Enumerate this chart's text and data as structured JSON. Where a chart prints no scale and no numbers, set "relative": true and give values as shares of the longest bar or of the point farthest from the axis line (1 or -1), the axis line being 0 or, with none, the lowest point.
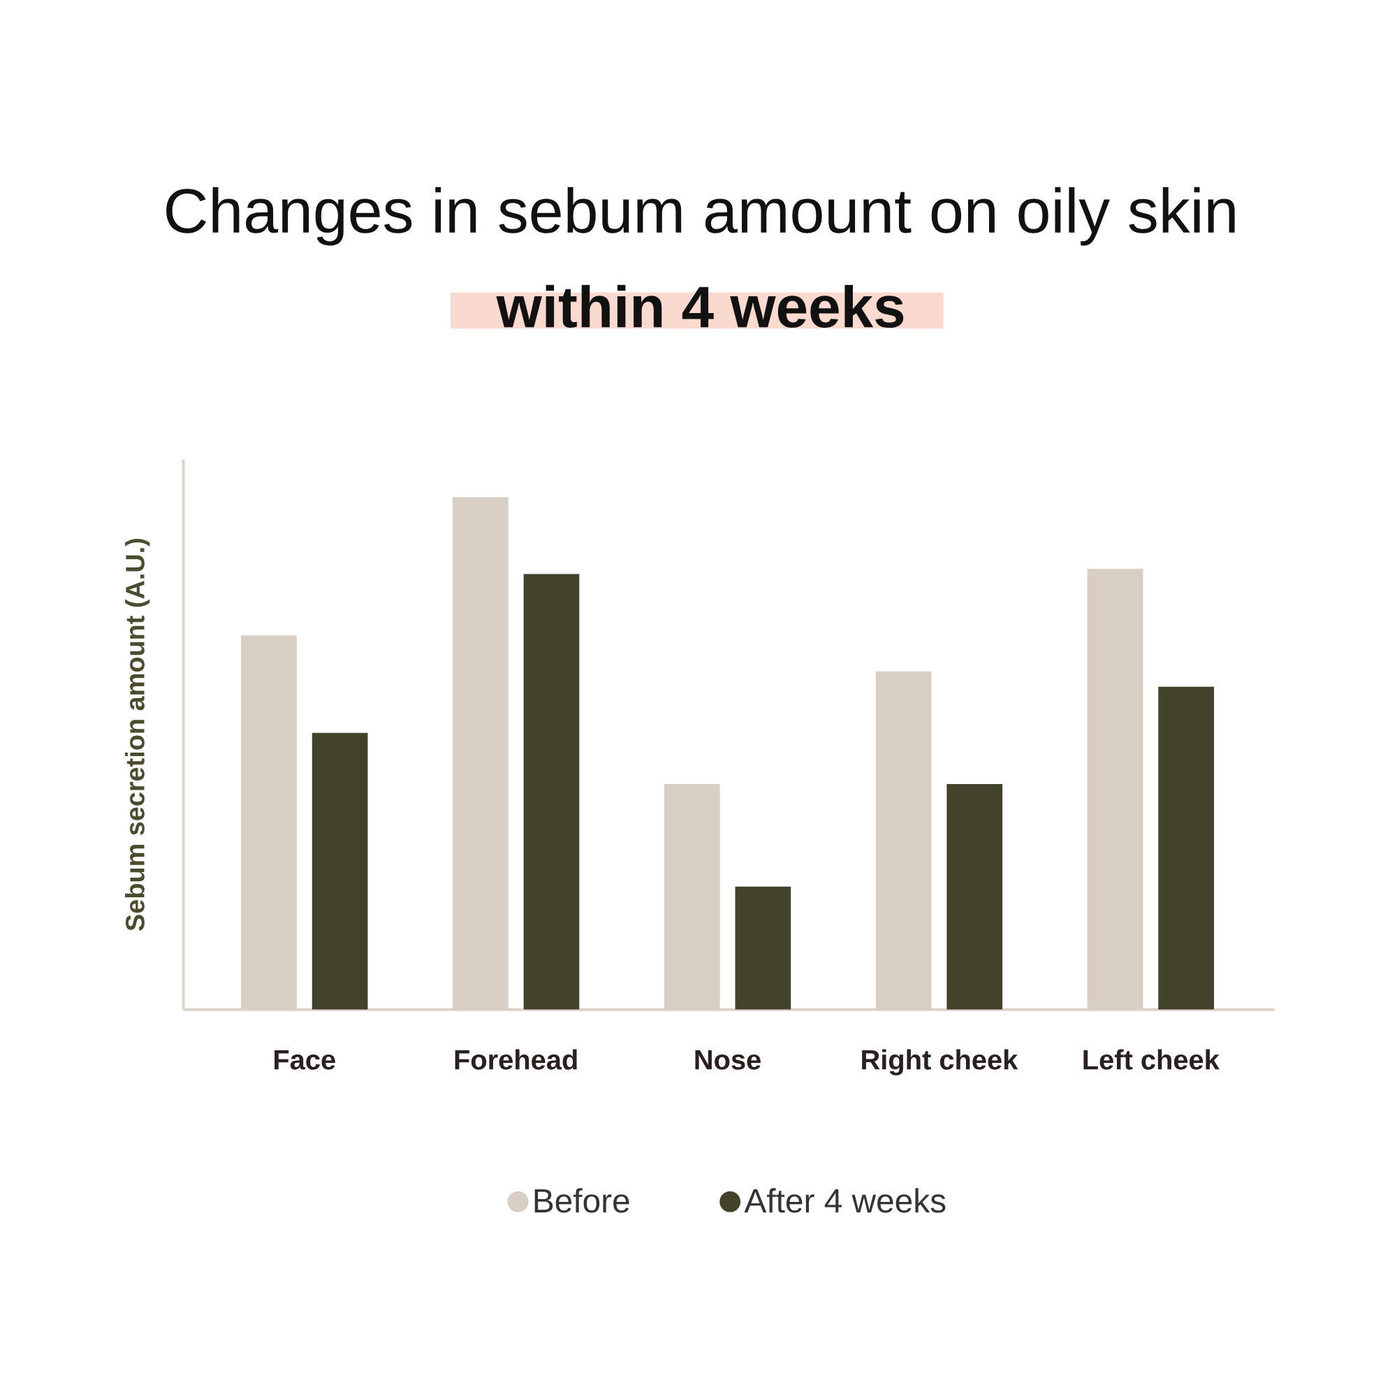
{
  "chart_data": {
    "type": "bar",
    "title": "Changes in sebum amount on oily skin",
    "subtitle": "within 4 weeks",
    "ylabel": "Sebum secretion amount (A.U.)",
    "categories": [
      "Face",
      "Forehead",
      "Nose",
      "Right cheek",
      "Left cheek"
    ],
    "relative": true,
    "series": [
      {
        "name": "Before",
        "color": "#d8cec3",
        "values": [
          0.73,
          1,
          0.44,
          0.66,
          0.86
        ]
      },
      {
        "name": "After 4 weeks",
        "color": "#42432a",
        "values": [
          0.54,
          0.85,
          0.24,
          0.44,
          0.63
        ]
      }
    ],
    "legend": "bottom"
  }
}
